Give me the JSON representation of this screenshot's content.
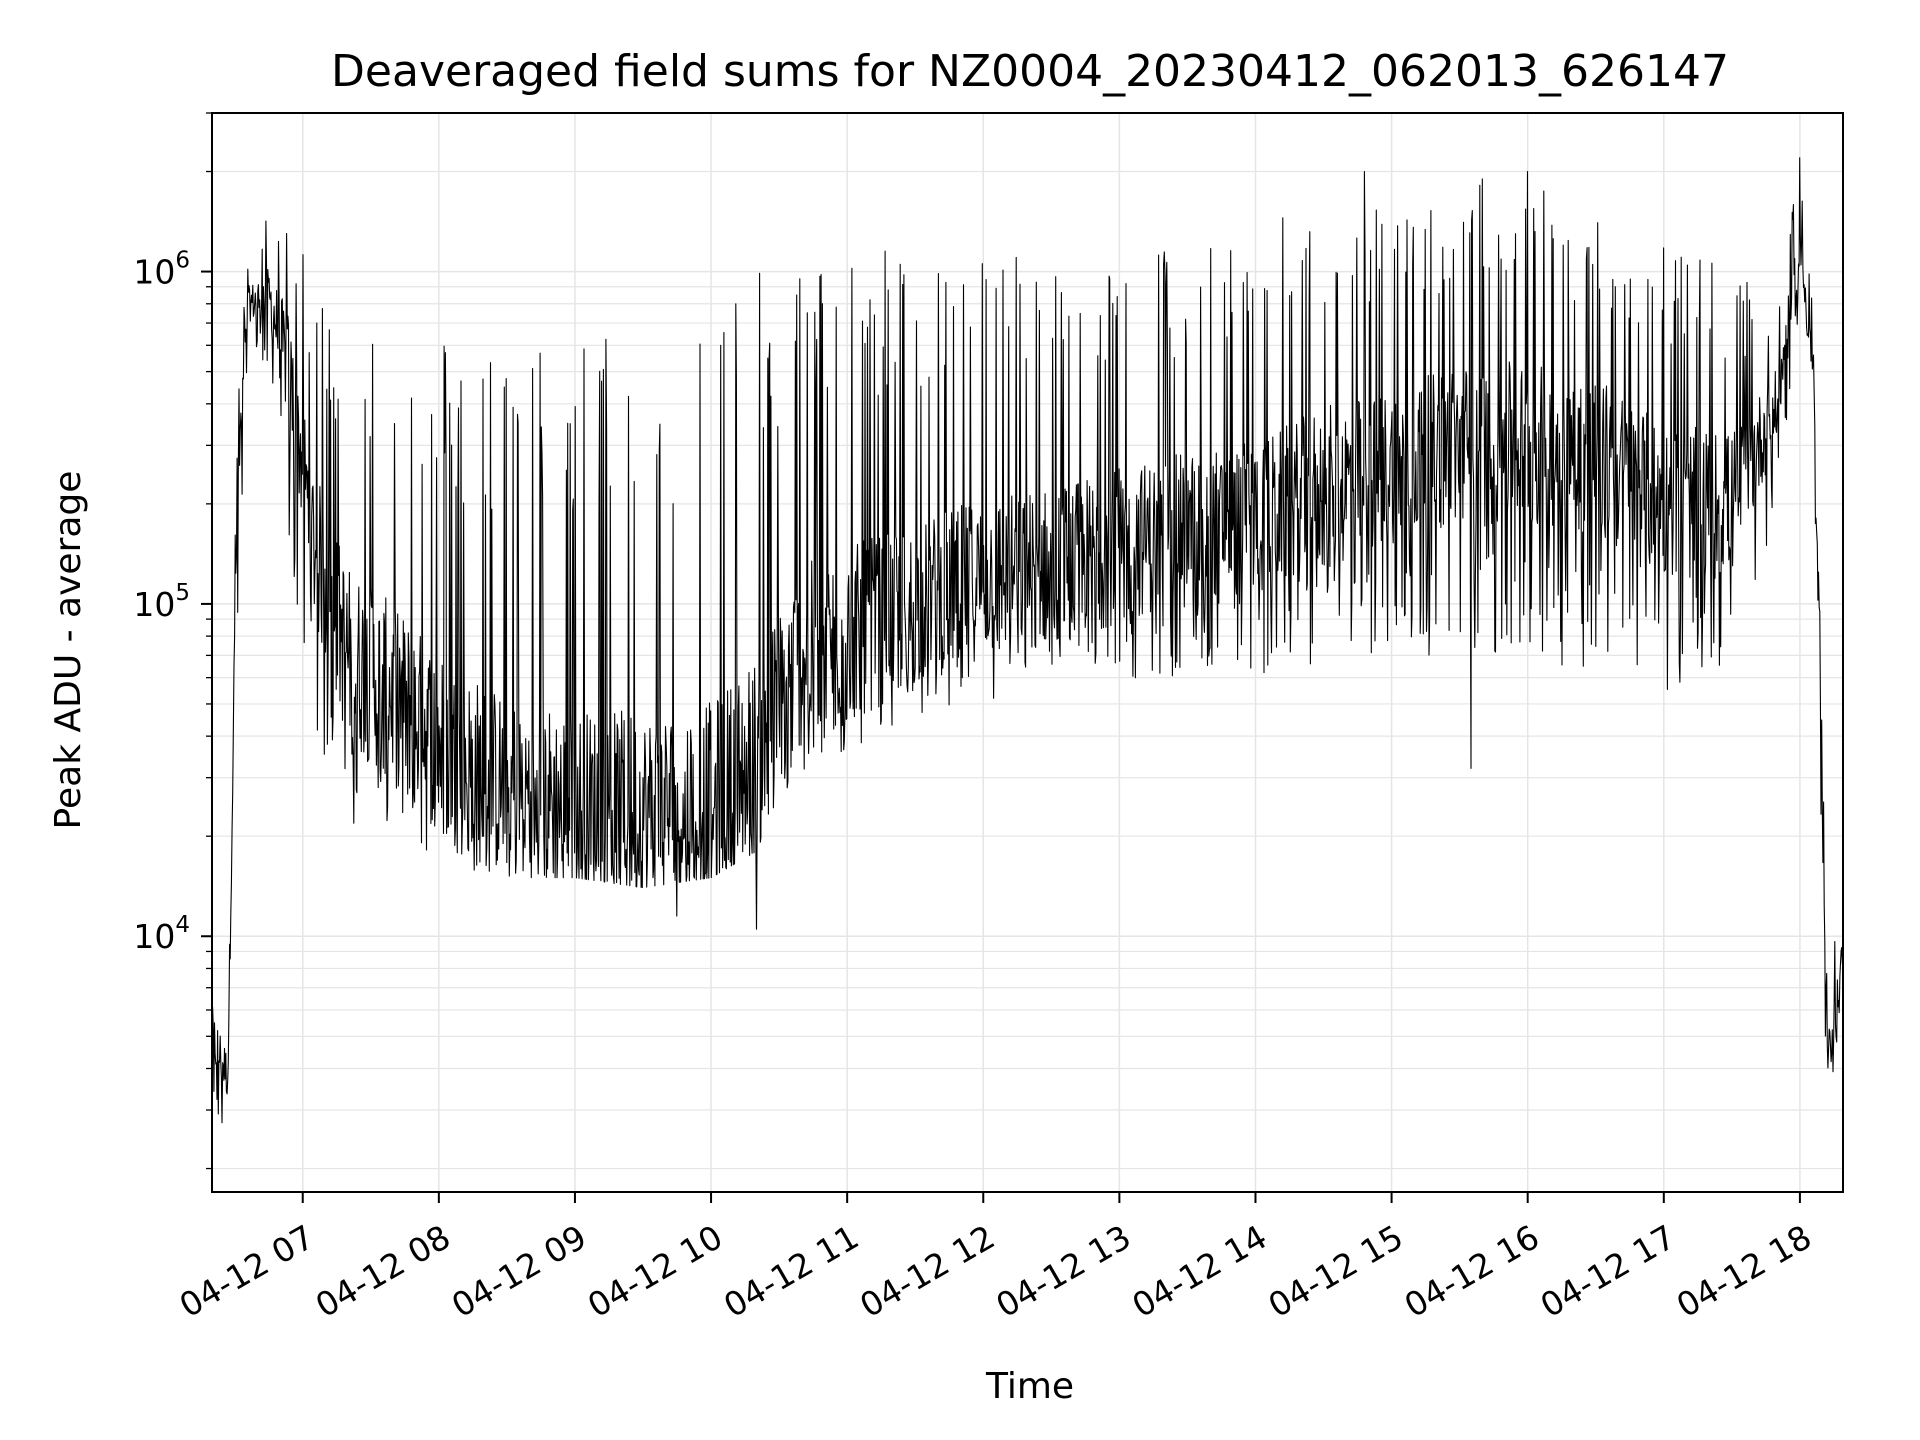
{
  "chart_data": {
    "type": "line",
    "title": "Deaveraged field sums for NZ0004_20230412_062013_626147",
    "xlabel": "Time",
    "ylabel": "Peak ADU - average",
    "x_scale": "time",
    "y_scale": "log",
    "xlim": [
      "2023-04-12 06:20",
      "2023-04-12 18:19"
    ],
    "ylim": [
      1700,
      3000000
    ],
    "grid": true,
    "line_color": "#000000",
    "grid_color": "#e5e5e5",
    "x_ticks": [
      {
        "value": "2023-04-12 07:00",
        "label": "04-12 07"
      },
      {
        "value": "2023-04-12 08:00",
        "label": "04-12 08"
      },
      {
        "value": "2023-04-12 09:00",
        "label": "04-12 09"
      },
      {
        "value": "2023-04-12 10:00",
        "label": "04-12 10"
      },
      {
        "value": "2023-04-12 11:00",
        "label": "04-12 11"
      },
      {
        "value": "2023-04-12 12:00",
        "label": "04-12 12"
      },
      {
        "value": "2023-04-12 13:00",
        "label": "04-12 13"
      },
      {
        "value": "2023-04-12 14:00",
        "label": "04-12 14"
      },
      {
        "value": "2023-04-12 15:00",
        "label": "04-12 15"
      },
      {
        "value": "2023-04-12 16:00",
        "label": "04-12 16"
      },
      {
        "value": "2023-04-12 17:00",
        "label": "04-12 17"
      },
      {
        "value": "2023-04-12 18:00",
        "label": "04-12 18"
      }
    ],
    "y_ticks": [
      {
        "value": 10000,
        "base": "10",
        "exp": "4"
      },
      {
        "value": 100000,
        "base": "10",
        "exp": "5"
      },
      {
        "value": 1000000,
        "base": "10",
        "exp": "6"
      }
    ],
    "series": [
      {
        "name": "",
        "envelope": [
          {
            "t": "2023-04-12 06:20",
            "low": 2600,
            "mid": 5000,
            "high": 9000
          },
          {
            "t": "2023-04-12 06:27",
            "low": 2500,
            "mid": 3800,
            "high": 6500
          },
          {
            "t": "2023-04-12 06:31",
            "low": 60000,
            "mid": 200000,
            "high": 400000
          },
          {
            "t": "2023-04-12 06:36",
            "low": 600000,
            "mid": 800000,
            "high": 1200000
          },
          {
            "t": "2023-04-12 06:45",
            "low": 500000,
            "mid": 850000,
            "high": 1500000
          },
          {
            "t": "2023-04-12 06:54",
            "low": 150000,
            "mid": 500000,
            "high": 1500000
          },
          {
            "t": "2023-04-12 07:05",
            "low": 40000,
            "mid": 150000,
            "high": 900000
          },
          {
            "t": "2023-04-12 07:20",
            "low": 22000,
            "mid": 70000,
            "high": 800000
          },
          {
            "t": "2023-04-12 07:45",
            "low": 20000,
            "mid": 50000,
            "high": 700000
          },
          {
            "t": "2023-04-12 08:05",
            "low": 16000,
            "mid": 35000,
            "high": 650000
          },
          {
            "t": "2023-04-12 08:30",
            "low": 15000,
            "mid": 28000,
            "high": 600000
          },
          {
            "t": "2023-04-12 09:00",
            "low": 15000,
            "mid": 25000,
            "high": 650000
          },
          {
            "t": "2023-04-12 09:30",
            "low": 14000,
            "mid": 24000,
            "high": 700000
          },
          {
            "t": "2023-04-12 10:00",
            "low": 15000,
            "mid": 25000,
            "high": 900000
          },
          {
            "t": "2023-04-12 10:20",
            "low": 18000,
            "mid": 35000,
            "high": 1000000
          },
          {
            "t": "2023-04-12 10:40",
            "low": 30000,
            "mid": 70000,
            "high": 1100000
          },
          {
            "t": "2023-04-12 11:00",
            "low": 35000,
            "mid": 80000,
            "high": 1200000
          },
          {
            "t": "2023-04-12 11:30",
            "low": 45000,
            "mid": 100000,
            "high": 1200000
          },
          {
            "t": "2023-04-12 12:00",
            "low": 50000,
            "mid": 120000,
            "high": 1200000
          },
          {
            "t": "2023-04-12 12:30",
            "low": 50000,
            "mid": 130000,
            "high": 1200000
          },
          {
            "t": "2023-04-12 13:00",
            "low": 55000,
            "mid": 150000,
            "high": 1200000
          },
          {
            "t": "2023-04-12 13:30",
            "low": 60000,
            "mid": 170000,
            "high": 1200000
          },
          {
            "t": "2023-04-12 14:00",
            "low": 60000,
            "mid": 180000,
            "high": 1300000
          },
          {
            "t": "2023-04-12 14:30",
            "low": 65000,
            "mid": 220000,
            "high": 1800000
          },
          {
            "t": "2023-04-12 15:00",
            "low": 70000,
            "mid": 260000,
            "high": 1500000
          },
          {
            "t": "2023-04-12 15:30",
            "low": 70000,
            "mid": 300000,
            "high": 1800000
          },
          {
            "t": "2023-04-12 16:00",
            "low": 70000,
            "mid": 300000,
            "high": 2000000
          },
          {
            "t": "2023-04-12 16:30",
            "low": 60000,
            "mid": 280000,
            "high": 1500000
          },
          {
            "t": "2023-04-12 17:00",
            "low": 55000,
            "mid": 200000,
            "high": 1300000
          },
          {
            "t": "2023-04-12 17:30",
            "low": 55000,
            "mid": 200000,
            "high": 1000000
          },
          {
            "t": "2023-04-12 17:50",
            "low": 200000,
            "mid": 400000,
            "high": 800000
          },
          {
            "t": "2023-04-12 18:00",
            "low": 800000,
            "mid": 1200000,
            "high": 2100000
          },
          {
            "t": "2023-04-12 18:06",
            "low": 300000,
            "mid": 500000,
            "high": 800000
          },
          {
            "t": "2023-04-12 18:12",
            "low": 2700,
            "mid": 4000,
            "high": 8000
          },
          {
            "t": "2023-04-12 18:19",
            "low": 6500,
            "mid": 9000,
            "high": 12000
          }
        ],
        "spikes": [
          {
            "t": "2023-04-12 14:48",
            "value": 2000000
          },
          {
            "t": "2023-04-12 15:40",
            "value": 1900000
          },
          {
            "t": "2023-04-12 16:00",
            "value": 2000000
          },
          {
            "t": "2023-04-12 18:00",
            "value": 2200000
          },
          {
            "t": "2023-04-12 10:20",
            "value": 10500
          },
          {
            "t": "2023-04-12 09:45",
            "value": 11500
          },
          {
            "t": "2023-04-12 15:35",
            "value": 32000
          }
        ]
      }
    ]
  }
}
